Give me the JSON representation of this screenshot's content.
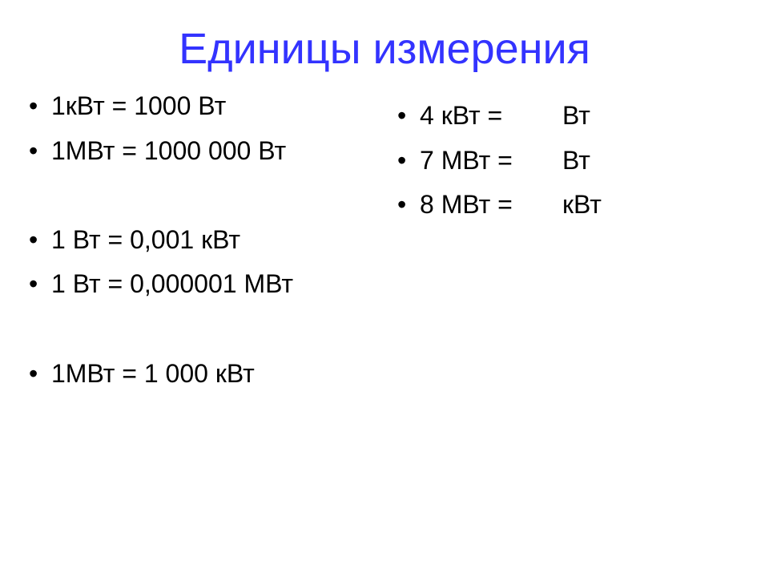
{
  "title": {
    "text": "Единицы измерения",
    "color": "#3333ff",
    "fontsize": 54
  },
  "body": {
    "fontsize": 32,
    "text_color": "#000000",
    "bullet_color": "#000000"
  },
  "background_color": "#ffffff",
  "left_column": {
    "items": [
      "1кВт = 1000 Вт",
      "1МВт = 1000 000 Вт",
      "",
      "1 Вт = 0,001 кВт",
      "1 Вт = 0,000001 МВт",
      "",
      "1МВт = 1 000 кВт"
    ]
  },
  "right_column": {
    "items": [
      {
        "lhs": "4 кВт =",
        "rhs": "Вт"
      },
      {
        "lhs": "7 МВт =",
        "rhs": "Вт"
      },
      {
        "lhs": "8 МВт =",
        "rhs": "кВт"
      }
    ]
  }
}
